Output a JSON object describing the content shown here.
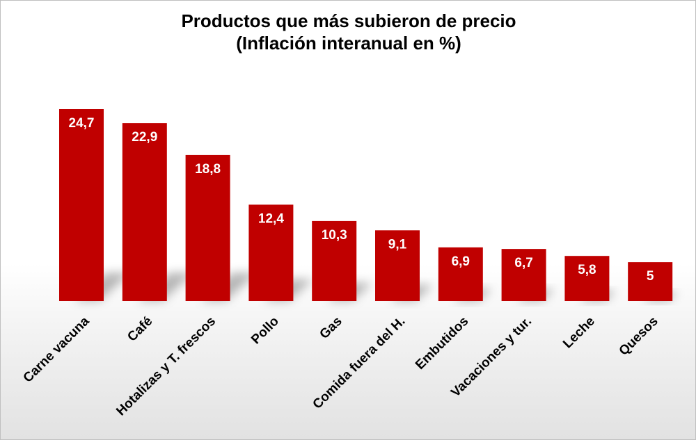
{
  "chart_data": {
    "type": "bar",
    "title": "Productos que más subieron de precio",
    "subtitle": "(Inflación interanual en %)",
    "categories": [
      "Carne vacuna",
      "Café",
      "Hotalizas y T. frescos",
      "Pollo",
      "Gas",
      "Comida fuera del H.",
      "Embutidos",
      "Vacaciones y tur.",
      "Leche",
      "Quesos"
    ],
    "values": [
      24.7,
      22.9,
      18.8,
      12.4,
      10.3,
      9.1,
      6.9,
      6.7,
      5.8,
      5
    ],
    "value_labels": [
      "24,7",
      "22,9",
      "18,8",
      "12,4",
      "10,3",
      "9,1",
      "6,9",
      "6,7",
      "5,8",
      "5"
    ],
    "ylim": [
      0,
      24.7
    ],
    "grid": false,
    "legend": "none",
    "bar_color": "#c00000",
    "value_label_color": "#ffffff"
  }
}
